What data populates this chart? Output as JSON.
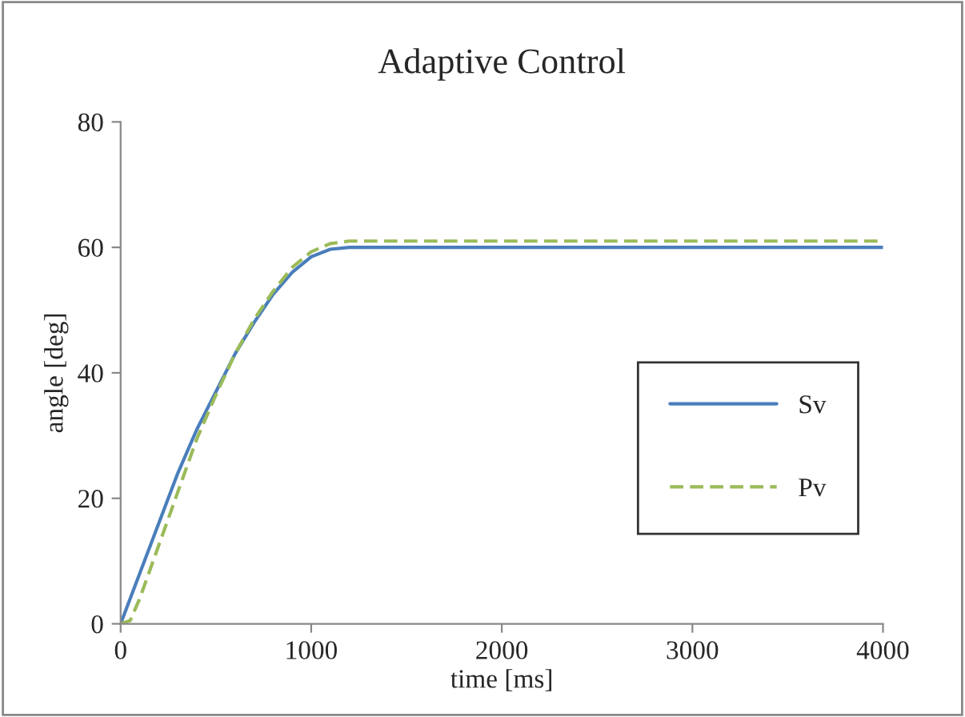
{
  "chart_data": {
    "type": "line",
    "title": "Adaptive Control",
    "xlabel": "time [ms]",
    "ylabel": "angle [deg]",
    "xlim": [
      0,
      4000
    ],
    "xticks": [
      0,
      1000,
      2000,
      3000,
      4000
    ],
    "ylim": [
      0,
      80
    ],
    "yticks": [
      0,
      20,
      40,
      60,
      80
    ],
    "grid": false,
    "legend": "right",
    "marker": "none",
    "series": [
      {
        "name": "Sv",
        "color": "#4a7ebb",
        "line_style": "solid",
        "x": [
          0,
          100,
          200,
          300,
          400,
          500,
          600,
          700,
          800,
          900,
          1000,
          1100,
          1200,
          4000
        ],
        "values": [
          0,
          8,
          16,
          24,
          31,
          37,
          43,
          48,
          52.5,
          56,
          58.5,
          59.7,
          60,
          60
        ]
      },
      {
        "name": "Pv",
        "color": "#9bbb59",
        "line_style": "dashed",
        "x": [
          0,
          50,
          100,
          200,
          300,
          400,
          500,
          600,
          700,
          800,
          900,
          1000,
          1100,
          1200,
          4000
        ],
        "values": [
          0,
          0.5,
          4,
          12.5,
          21,
          29.5,
          36.5,
          43,
          48.5,
          53,
          56.8,
          59.3,
          60.6,
          61,
          61
        ]
      }
    ]
  }
}
